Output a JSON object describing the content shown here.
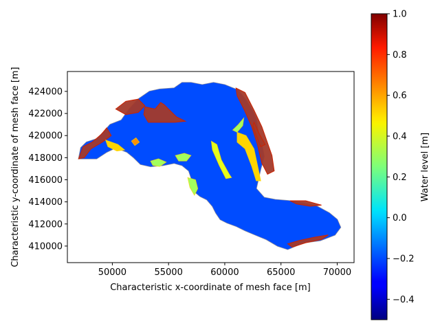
{
  "chart_data": {
    "type": "heatmap",
    "title": "",
    "xlabel": "Characteristic x-coordinate of mesh face [m]",
    "ylabel": "Characteristic y-coordinate of mesh face [m]",
    "xlim": [
      46000,
      71500
    ],
    "ylim": [
      408500,
      425800
    ],
    "x_ticks": [
      50000,
      55000,
      60000,
      65000,
      70000
    ],
    "y_ticks": [
      410000,
      412000,
      414000,
      416000,
      418000,
      420000,
      422000,
      424000
    ],
    "grid": false,
    "colorbar": {
      "label": "Water level [m]",
      "colormap": "jet",
      "range": [
        -0.5,
        1.0
      ],
      "ticks": [
        -0.4,
        -0.2,
        0.0,
        0.2,
        0.4,
        0.6,
        0.8,
        1.0
      ],
      "tick_labels": [
        "−0.4",
        "−0.2",
        "0.0",
        "0.2",
        "0.4",
        "0.6",
        "0.8",
        "1.0"
      ]
    },
    "domain_outline": [
      [
        47000,
        417900
      ],
      [
        47200,
        418900
      ],
      [
        47700,
        419400
      ],
      [
        48600,
        419700
      ],
      [
        49200,
        420300
      ],
      [
        49800,
        421000
      ],
      [
        50800,
        421400
      ],
      [
        51500,
        422400
      ],
      [
        52300,
        423300
      ],
      [
        53300,
        424000
      ],
      [
        54200,
        424200
      ],
      [
        55500,
        424300
      ],
      [
        56200,
        424800
      ],
      [
        57000,
        424800
      ],
      [
        58000,
        424600
      ],
      [
        59000,
        424800
      ],
      [
        60000,
        424600
      ],
      [
        61200,
        424100
      ],
      [
        61900,
        423200
      ],
      [
        62500,
        422200
      ],
      [
        62800,
        421500
      ],
      [
        63000,
        420200
      ],
      [
        63300,
        419200
      ],
      [
        63500,
        418100
      ],
      [
        63200,
        417000
      ],
      [
        63000,
        416100
      ],
      [
        62800,
        415200
      ],
      [
        63500,
        414400
      ],
      [
        64500,
        414200
      ],
      [
        65700,
        414100
      ],
      [
        67000,
        413900
      ],
      [
        68200,
        413600
      ],
      [
        69300,
        413000
      ],
      [
        70000,
        412400
      ],
      [
        70300,
        411700
      ],
      [
        69800,
        411000
      ],
      [
        68500,
        410500
      ],
      [
        67000,
        410300
      ],
      [
        65600,
        409700
      ],
      [
        64700,
        410000
      ],
      [
        63700,
        410600
      ],
      [
        62500,
        411100
      ],
      [
        61800,
        411400
      ],
      [
        61000,
        411800
      ],
      [
        60200,
        412100
      ],
      [
        59600,
        412400
      ],
      [
        59200,
        413000
      ],
      [
        58900,
        413600
      ],
      [
        58400,
        414200
      ],
      [
        57800,
        414500
      ],
      [
        57200,
        415000
      ],
      [
        57100,
        415900
      ],
      [
        56800,
        416800
      ],
      [
        56200,
        417300
      ],
      [
        55500,
        417500
      ],
      [
        54500,
        417300
      ],
      [
        53400,
        417200
      ],
      [
        52500,
        417400
      ],
      [
        51900,
        418000
      ],
      [
        51300,
        418500
      ],
      [
        50300,
        418900
      ],
      [
        49500,
        418500
      ],
      [
        48600,
        417900
      ],
      [
        47800,
        417900
      ]
    ],
    "background_level_m": -0.2,
    "high_level_zones": [
      {
        "level_m": 1.0,
        "points": [
          [
            61000,
            424300
          ],
          [
            61800,
            423900
          ],
          [
            62600,
            422300
          ],
          [
            63300,
            420800
          ],
          [
            64200,
            418200
          ],
          [
            64400,
            416800
          ],
          [
            63800,
            416500
          ],
          [
            63300,
            417500
          ],
          [
            62900,
            419200
          ],
          [
            62400,
            420800
          ],
          [
            61700,
            422400
          ],
          [
            61100,
            423600
          ]
        ]
      },
      {
        "level_m": 1.0,
        "points": [
          [
            52900,
            422600
          ],
          [
            53800,
            422400
          ],
          [
            54300,
            423000
          ],
          [
            54600,
            422800
          ],
          [
            55700,
            421700
          ],
          [
            56500,
            421300
          ],
          [
            55500,
            421200
          ],
          [
            54300,
            421200
          ],
          [
            53200,
            421200
          ],
          [
            52800,
            421900
          ]
        ]
      },
      {
        "level_m": 1.0,
        "points": [
          [
            50300,
            422400
          ],
          [
            51200,
            423100
          ],
          [
            52300,
            423300
          ],
          [
            52900,
            422700
          ],
          [
            52300,
            422100
          ],
          [
            51200,
            421900
          ]
        ]
      },
      {
        "level_m": 1.0,
        "points": [
          [
            62600,
            421200
          ],
          [
            63100,
            420100
          ],
          [
            63600,
            419200
          ],
          [
            63200,
            419000
          ],
          [
            62800,
            420000
          ],
          [
            62500,
            420900
          ]
        ]
      },
      {
        "level_m": 1.0,
        "points": [
          [
            47000,
            417900
          ],
          [
            47400,
            419000
          ],
          [
            48200,
            419400
          ],
          [
            49000,
            420100
          ],
          [
            49500,
            420700
          ],
          [
            49900,
            420000
          ],
          [
            49100,
            419400
          ],
          [
            48100,
            418800
          ],
          [
            47500,
            418000
          ]
        ]
      },
      {
        "level_m": 1.0,
        "points": [
          [
            65600,
            410200
          ],
          [
            66600,
            410500
          ],
          [
            68000,
            410800
          ],
          [
            69200,
            411000
          ],
          [
            68600,
            410600
          ],
          [
            67200,
            410300
          ],
          [
            66000,
            409900
          ]
        ]
      },
      {
        "level_m": 1.0,
        "points": [
          [
            65800,
            414100
          ],
          [
            67200,
            414100
          ],
          [
            68600,
            413700
          ],
          [
            67600,
            413600
          ],
          [
            66400,
            413800
          ]
        ]
      }
    ],
    "mid_level_zones": [
      {
        "level_m": 0.4,
        "points": [
          [
            58800,
            419500
          ],
          [
            59300,
            419200
          ],
          [
            59700,
            417800
          ],
          [
            60400,
            416500
          ],
          [
            60600,
            416200
          ],
          [
            60100,
            416100
          ],
          [
            59500,
            417300
          ],
          [
            58900,
            418700
          ]
        ]
      },
      {
        "level_m": 0.5,
        "points": [
          [
            61100,
            420300
          ],
          [
            61900,
            420000
          ],
          [
            62600,
            418800
          ],
          [
            63000,
            416900
          ],
          [
            63200,
            415900
          ],
          [
            62800,
            415900
          ],
          [
            62400,
            417200
          ],
          [
            61800,
            418800
          ],
          [
            61100,
            419400
          ]
        ]
      },
      {
        "level_m": 0.3,
        "points": [
          [
            60700,
            420500
          ],
          [
            61200,
            421000
          ],
          [
            61700,
            421600
          ],
          [
            61600,
            420900
          ],
          [
            61100,
            420300
          ]
        ]
      },
      {
        "level_m": 0.3,
        "points": [
          [
            55600,
            418200
          ],
          [
            56400,
            418400
          ],
          [
            57000,
            418200
          ],
          [
            56600,
            417700
          ],
          [
            55900,
            417700
          ]
        ]
      },
      {
        "level_m": 0.3,
        "points": [
          [
            53400,
            417700
          ],
          [
            54100,
            417900
          ],
          [
            54800,
            417600
          ],
          [
            54200,
            417200
          ],
          [
            53600,
            417300
          ]
        ]
      },
      {
        "level_m": 0.3,
        "points": [
          [
            56700,
            416200
          ],
          [
            57400,
            416000
          ],
          [
            57600,
            415200
          ],
          [
            57300,
            414600
          ],
          [
            56900,
            415300
          ]
        ]
      },
      {
        "level_m": 0.6,
        "points": [
          [
            51700,
            419500
          ],
          [
            52100,
            419800
          ],
          [
            52400,
            419400
          ],
          [
            52000,
            419100
          ]
        ]
      },
      {
        "level_m": 0.5,
        "points": [
          [
            49400,
            419600
          ],
          [
            50500,
            419200
          ],
          [
            51100,
            418700
          ],
          [
            50400,
            418600
          ],
          [
            49600,
            419000
          ]
        ]
      }
    ]
  }
}
